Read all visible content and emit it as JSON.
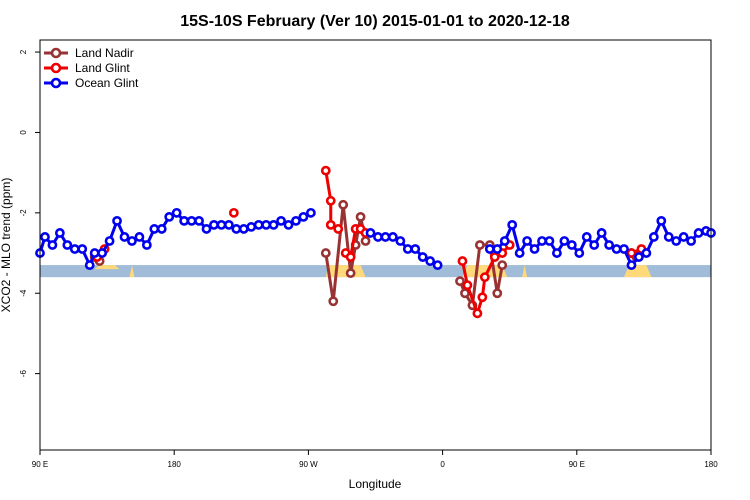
{
  "chart_data": {
    "type": "line",
    "title": "15S-10S February (Ver 10)   2015-01-01 to 2020-12-18",
    "xlabel": "Longitude",
    "ylabel": "XCO2 - MLO trend (ppm)",
    "xlim": [
      -90,
      180
    ],
    "ylim": [
      -7.9,
      2.3
    ],
    "x_ticks": [
      {
        "value": -90,
        "label": "90 E"
      },
      {
        "value": -36,
        "label": "180"
      },
      {
        "value": 18,
        "label": "90 W"
      },
      {
        "value": 72,
        "label": "0"
      },
      {
        "value": 126,
        "label": "90 E"
      },
      {
        "value": 180,
        "label": "180"
      }
    ],
    "y_ticks": [
      {
        "value": 2,
        "label": "2"
      },
      {
        "value": 0,
        "label": "0"
      },
      {
        "value": -2,
        "label": "-2"
      },
      {
        "value": -4,
        "label": "-4"
      },
      {
        "value": -6,
        "label": "-6"
      }
    ],
    "grid": false,
    "legend": "top-left",
    "land_band": {
      "y_low": -3.6,
      "y_high": -3.3,
      "color": "#a0bcd8"
    },
    "land_fill": {
      "color": "#ffd97a",
      "segments": [
        [
          [
            -68,
            -3.4
          ],
          [
            -66,
            -3.3
          ],
          [
            -60,
            -3.3
          ],
          [
            -58,
            -3.4
          ]
        ],
        [
          [
            -54,
            -3.6
          ],
          [
            -53,
            -3.3
          ],
          [
            -52,
            -3.6
          ]
        ],
        [
          [
            25,
            -3.6
          ],
          [
            26,
            -3.3
          ],
          [
            39,
            -3.3
          ],
          [
            41,
            -3.6
          ]
        ],
        [
          [
            80,
            -3.6
          ],
          [
            82,
            -3.3
          ],
          [
            96,
            -3.3
          ],
          [
            98,
            -3.6
          ]
        ],
        [
          [
            104,
            -3.6
          ],
          [
            105,
            -3.3
          ],
          [
            106,
            -3.6
          ]
        ],
        [
          [
            145,
            -3.6
          ],
          [
            147,
            -3.3
          ],
          [
            154,
            -3.3
          ],
          [
            156,
            -3.6
          ]
        ]
      ]
    },
    "series": [
      {
        "name": "Land Nadir",
        "color": "#993333",
        "segments": [
          [
            [
              -68,
              -3.1
            ],
            [
              -66,
              -3.2
            ]
          ],
          [
            [
              25,
              -3.0
            ],
            [
              28,
              -4.2
            ],
            [
              32,
              -1.8
            ],
            [
              35,
              -3.5
            ],
            [
              37,
              -2.8
            ],
            [
              39,
              -2.1
            ],
            [
              41,
              -2.7
            ]
          ],
          [
            [
              79,
              -3.7
            ],
            [
              81,
              -4.0
            ],
            [
              84,
              -4.3
            ],
            [
              87,
              -2.8
            ],
            [
              91,
              -2.8
            ],
            [
              94,
              -4.0
            ],
            [
              96,
              -3.3
            ]
          ],
          [
            [
              148,
              -3.0
            ],
            [
              150,
              -3.1
            ]
          ]
        ]
      },
      {
        "name": "Land Glint",
        "color": "#ee0000",
        "segments": [
          [
            [
              -67,
              -3.1
            ],
            [
              -64,
              -2.9
            ]
          ],
          [
            [
              -12,
              -2.0
            ]
          ],
          [
            [
              25,
              -0.95
            ],
            [
              27,
              -1.7
            ],
            [
              27,
              -2.3
            ],
            [
              30,
              -2.4
            ]
          ],
          [
            [
              33,
              -3.0
            ],
            [
              35,
              -3.1
            ],
            [
              37,
              -2.4
            ],
            [
              39,
              -2.4
            ],
            [
              41,
              -2.5
            ]
          ],
          [
            [
              80,
              -3.2
            ],
            [
              82,
              -3.8
            ],
            [
              86,
              -4.5
            ],
            [
              88,
              -4.1
            ],
            [
              89,
              -3.6
            ],
            [
              93,
              -3.1
            ],
            [
              96,
              -3.0
            ],
            [
              99,
              -2.8
            ]
          ],
          [
            [
              148,
              -3.0
            ],
            [
              152,
              -2.9
            ]
          ]
        ]
      },
      {
        "name": "Ocean Glint",
        "color": "#0000ee",
        "segments": [
          [
            [
              -90,
              -3.0
            ],
            [
              -88,
              -2.6
            ],
            [
              -85,
              -2.8
            ],
            [
              -82,
              -2.5
            ],
            [
              -79,
              -2.8
            ],
            [
              -76,
              -2.9
            ],
            [
              -73,
              -2.9
            ],
            [
              -70,
              -3.3
            ],
            [
              -68,
              -3.0
            ],
            [
              -65,
              -3.0
            ],
            [
              -62,
              -2.7
            ],
            [
              -59,
              -2.2
            ],
            [
              -56,
              -2.6
            ],
            [
              -53,
              -2.7
            ],
            [
              -50,
              -2.6
            ],
            [
              -47,
              -2.8
            ],
            [
              -44,
              -2.4
            ],
            [
              -41,
              -2.4
            ],
            [
              -38,
              -2.1
            ],
            [
              -35,
              -2.0
            ],
            [
              -32,
              -2.2
            ],
            [
              -29,
              -2.2
            ],
            [
              -26,
              -2.2
            ],
            [
              -23,
              -2.4
            ],
            [
              -20,
              -2.3
            ],
            [
              -17,
              -2.3
            ],
            [
              -14,
              -2.3
            ],
            [
              -11,
              -2.4
            ],
            [
              -8,
              -2.4
            ],
            [
              -5,
              -2.35
            ],
            [
              -2,
              -2.3
            ],
            [
              1,
              -2.3
            ],
            [
              4,
              -2.3
            ],
            [
              7,
              -2.2
            ],
            [
              10,
              -2.3
            ],
            [
              13,
              -2.2
            ],
            [
              16,
              -2.1
            ],
            [
              19,
              -2.0
            ]
          ],
          [
            [
              43,
              -2.5
            ],
            [
              46,
              -2.6
            ],
            [
              49,
              -2.6
            ],
            [
              52,
              -2.6
            ],
            [
              55,
              -2.7
            ],
            [
              58,
              -2.9
            ],
            [
              61,
              -2.9
            ],
            [
              64,
              -3.1
            ],
            [
              67,
              -3.2
            ],
            [
              70,
              -3.3
            ]
          ],
          [
            [
              91,
              -2.9
            ],
            [
              94,
              -2.9
            ],
            [
              97,
              -2.7
            ],
            [
              100,
              -2.3
            ],
            [
              103,
              -3.0
            ],
            [
              106,
              -2.7
            ],
            [
              109,
              -2.9
            ],
            [
              112,
              -2.7
            ],
            [
              115,
              -2.7
            ],
            [
              118,
              -3.0
            ],
            [
              121,
              -2.7
            ],
            [
              124,
              -2.8
            ],
            [
              127,
              -3.0
            ],
            [
              130,
              -2.6
            ],
            [
              133,
              -2.8
            ],
            [
              136,
              -2.5
            ],
            [
              139,
              -2.8
            ],
            [
              142,
              -2.9
            ],
            [
              145,
              -2.9
            ],
            [
              148,
              -3.3
            ],
            [
              151,
              -3.1
            ],
            [
              154,
              -3.0
            ],
            [
              157,
              -2.6
            ],
            [
              160,
              -2.2
            ],
            [
              163,
              -2.6
            ],
            [
              166,
              -2.7
            ],
            [
              169,
              -2.6
            ],
            [
              172,
              -2.7
            ],
            [
              175,
              -2.5
            ],
            [
              178,
              -2.45
            ],
            [
              180,
              -2.5
            ]
          ]
        ]
      }
    ]
  }
}
